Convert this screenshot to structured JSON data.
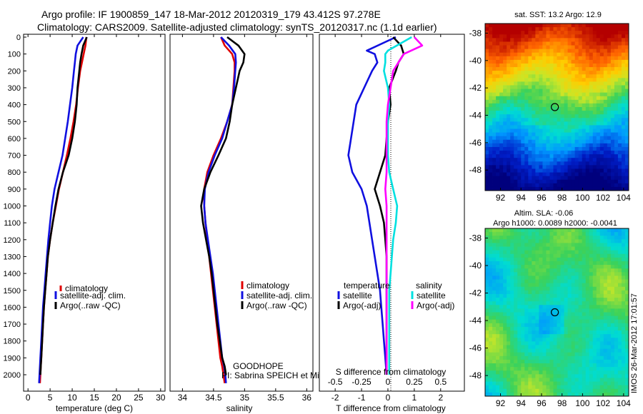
{
  "header": {
    "line1": "Argo profile: IF 1900859_147 18-Mar-2012 20120319_179 43.412S 97.278E",
    "line2": "Climatology: CARS2009. Satellite-adjusted climatology: synTS_20120317.nc (1.1d earlier)"
  },
  "footer": {
    "project": "GOODHOPE",
    "pi": "PI: Sabrina SPEICH et Michel ARHAN",
    "credit": "IMOS 26-Mar-2012 17:01:57"
  },
  "colors": {
    "red": "#e00000",
    "blue": "#1010e0",
    "black": "#000000",
    "cyan": "#00e0e0",
    "magenta": "#ff00ff"
  },
  "chart_data": [
    {
      "id": "temp",
      "type": "line",
      "xlabel": "temperature (deg C)",
      "ylabel": "",
      "xlim": [
        -1,
        31
      ],
      "ylim": [
        2050,
        0
      ],
      "xticks": [
        0,
        5,
        10,
        15,
        20,
        25,
        30
      ],
      "yticks": [
        0,
        100,
        200,
        300,
        400,
        500,
        600,
        700,
        800,
        900,
        1000,
        1100,
        1200,
        1300,
        1400,
        1500,
        1600,
        1700,
        1800,
        1900,
        2000
      ],
      "legend": {
        "placement": "lower-right",
        "entries": [
          "climatology",
          "satellite-adj. clim.",
          "Argo(..raw -QC)"
        ]
      },
      "series": [
        {
          "name": "climatology",
          "color": "red",
          "x": [
            13.2,
            13.0,
            12.6,
            12.2,
            11.8,
            11.3,
            10.9,
            10.3,
            9.6,
            8.8,
            7.9,
            7.0,
            6.3,
            5.6,
            5.0,
            4.5,
            4.2,
            3.9,
            3.6,
            3.4,
            3.2,
            3.0,
            2.9,
            2.8,
            2.7
          ],
          "y": [
            0,
            50,
            100,
            150,
            200,
            300,
            400,
            500,
            600,
            700,
            800,
            900,
            1000,
            1100,
            1200,
            1300,
            1400,
            1500,
            1600,
            1700,
            1800,
            1900,
            1950,
            2000,
            2050
          ]
        },
        {
          "name": "satellite-adj. clim.",
          "color": "blue",
          "x": [
            12.5,
            11.2,
            10.8,
            10.6,
            10.4,
            10.0,
            9.5,
            9.0,
            8.4,
            7.8,
            6.9,
            6.0,
            5.4,
            5.0,
            4.6,
            4.3,
            4.0,
            3.7,
            3.4,
            3.2,
            3.0,
            2.8,
            2.7,
            2.6,
            2.5
          ],
          "y": [
            0,
            50,
            100,
            150,
            200,
            300,
            400,
            500,
            600,
            700,
            800,
            900,
            1000,
            1100,
            1200,
            1300,
            1400,
            1500,
            1600,
            1700,
            1800,
            1900,
            1950,
            2000,
            2050
          ]
        },
        {
          "name": "Argo(..raw -QC)",
          "color": "black",
          "x": [
            13.3,
            12.5,
            12.1,
            11.8,
            11.6,
            11.2,
            11.0,
            10.6,
            10.0,
            9.2,
            7.9,
            6.9,
            6.2,
            5.6,
            5.0,
            4.5,
            4.2,
            3.9,
            3.6,
            3.4,
            3.2,
            3.0,
            2.9,
            2.8
          ],
          "y": [
            0,
            50,
            100,
            150,
            200,
            300,
            400,
            500,
            600,
            700,
            800,
            900,
            1000,
            1100,
            1200,
            1300,
            1400,
            1500,
            1600,
            1700,
            1800,
            1900,
            1950,
            2000
          ]
        }
      ]
    },
    {
      "id": "sal",
      "type": "line",
      "xlabel": "salinity",
      "ylabel": "",
      "xlim": [
        33.8,
        36.1
      ],
      "ylim": [
        2050,
        0
      ],
      "xticks": [
        34,
        34.5,
        35,
        35.5,
        36
      ],
      "yticks": [],
      "legend": {
        "placement": "lower-right",
        "entries": [
          "climatology",
          "satellite-adj. clim.",
          "Argo(..raw -QC)"
        ]
      },
      "series": [
        {
          "name": "climatology",
          "color": "red",
          "x": [
            34.62,
            34.68,
            34.8,
            34.84,
            34.84,
            34.82,
            34.8,
            34.72,
            34.62,
            34.5,
            34.4,
            34.35,
            34.35,
            34.37,
            34.4,
            34.43,
            34.46,
            34.49,
            34.52,
            34.55,
            34.58,
            34.61,
            34.64,
            34.66,
            34.68
          ],
          "y": [
            0,
            50,
            100,
            150,
            200,
            300,
            400,
            500,
            600,
            700,
            800,
            900,
            1000,
            1100,
            1200,
            1300,
            1400,
            1500,
            1600,
            1700,
            1800,
            1900,
            1950,
            2000,
            2050
          ]
        },
        {
          "name": "satellite-adj. clim.",
          "color": "blue",
          "x": [
            34.62,
            34.75,
            34.85,
            34.86,
            34.85,
            34.83,
            34.8,
            34.72,
            34.64,
            34.52,
            34.42,
            34.36,
            34.35,
            34.37,
            34.41,
            34.45,
            34.49,
            34.52,
            34.55,
            34.58,
            34.61,
            34.64,
            34.67,
            34.69,
            34.7
          ],
          "y": [
            0,
            50,
            100,
            150,
            200,
            300,
            400,
            500,
            600,
            700,
            800,
            900,
            1000,
            1100,
            1200,
            1300,
            1400,
            1500,
            1600,
            1700,
            1800,
            1900,
            1950,
            2000,
            2050
          ]
        },
        {
          "name": "Argo(..raw -QC)",
          "color": "black",
          "x": [
            34.72,
            34.9,
            35.0,
            34.98,
            34.92,
            34.86,
            34.8,
            34.76,
            34.7,
            34.58,
            34.45,
            34.35,
            34.3,
            34.33,
            34.38,
            34.43,
            34.47,
            34.5,
            34.53,
            34.56,
            34.6,
            34.64,
            34.68,
            34.7
          ],
          "y": [
            0,
            50,
            100,
            150,
            200,
            300,
            400,
            500,
            600,
            700,
            800,
            900,
            1000,
            1100,
            1200,
            1300,
            1400,
            1500,
            1600,
            1700,
            1800,
            1900,
            1950,
            2000
          ]
        }
      ]
    },
    {
      "id": "diff",
      "type": "line",
      "xlabel": "T difference from climatology",
      "xlabel_top": "S difference from climatology",
      "ylabel": "",
      "xlim": [
        -2.6,
        2.9
      ],
      "ylim": [
        2050,
        0
      ],
      "xticks": [
        -2,
        -1,
        0,
        1,
        2
      ],
      "xticks_sal": [
        "-0.5",
        "-0.25",
        "0",
        "0.25",
        "0.5"
      ],
      "legend": {
        "placement": "lower-center",
        "group_titles": [
          "temperature",
          "salinity"
        ],
        "entries": [
          "satellite",
          "Argo(-adj)",
          "satellite",
          "Argo(-adj)"
        ]
      },
      "series": [
        {
          "name": "satellite",
          "group": "temperature",
          "color": "blue",
          "x": [
            0.3,
            -0.8,
            -0.5,
            -0.4,
            -0.6,
            -0.9,
            -1.2,
            -1.3,
            -1.4,
            -1.5,
            -1.35,
            -1.0,
            -0.8,
            -0.7,
            -0.6,
            -0.5,
            -0.4,
            -0.3,
            -0.25,
            -0.2,
            -0.15,
            -0.1,
            -0.05
          ],
          "y": [
            0,
            80,
            100,
            150,
            200,
            300,
            400,
            500,
            600,
            700,
            800,
            900,
            1000,
            1100,
            1200,
            1300,
            1400,
            1500,
            1600,
            1700,
            1800,
            1900,
            2000
          ]
        },
        {
          "name": "Argo(-adj)",
          "group": "temperature",
          "color": "black",
          "x": [
            0.2,
            0.5,
            0.6,
            0.4,
            0.3,
            0.05,
            0.1,
            0.0,
            -0.05,
            -0.1,
            -0.3,
            -0.5,
            -0.3,
            -0.15,
            -0.1,
            -0.05,
            -0.05,
            -0.05,
            -0.05,
            -0.05,
            -0.05,
            -0.05,
            -0.05
          ],
          "y": [
            0,
            50,
            100,
            150,
            200,
            300,
            400,
            500,
            600,
            700,
            800,
            900,
            1000,
            1100,
            1200,
            1300,
            1400,
            1500,
            1600,
            1700,
            1800,
            1900,
            2000
          ]
        },
        {
          "name": "satellite",
          "group": "salinity",
          "color": "cyan",
          "x": [
            0.9,
            0.0,
            -0.1,
            -0.1,
            -0.15,
            0.0,
            0.05,
            0.0,
            0.0,
            0.0,
            0.05,
            0.2,
            0.35,
            0.3,
            0.2,
            0.15,
            0.1,
            0.05,
            0.05,
            0.05,
            0.05,
            0.05,
            0.05
          ],
          "y": [
            0,
            80,
            100,
            150,
            200,
            300,
            400,
            500,
            600,
            700,
            800,
            900,
            1000,
            1100,
            1200,
            1300,
            1400,
            1500,
            1600,
            1700,
            1800,
            1900,
            2000
          ]
        },
        {
          "name": "Argo(-adj)",
          "group": "salinity",
          "color": "magenta",
          "x": [
            1.0,
            1.3,
            0.6,
            0.4,
            0.2,
            0.1,
            0.0,
            -0.05,
            -0.05,
            -0.05,
            -0.05,
            -0.1,
            -0.05,
            -0.05,
            -0.05,
            -0.05,
            -0.05,
            -0.05,
            -0.05,
            -0.05,
            -0.05,
            -0.05,
            -0.05
          ],
          "y": [
            0,
            50,
            100,
            150,
            200,
            300,
            400,
            500,
            600,
            700,
            800,
            900,
            1000,
            1100,
            1200,
            1300,
            1400,
            1500,
            1600,
            1700,
            1800,
            1900,
            2000
          ]
        }
      ]
    },
    {
      "id": "sst",
      "type": "heatmap",
      "title": "sat. SST: 13.2  Argo: 12.9",
      "xticks": [
        92,
        94,
        96,
        98,
        100,
        102,
        104
      ],
      "yticks": [
        -38,
        -40,
        -42,
        -44,
        -46,
        -48
      ],
      "xlim": [
        90.5,
        104.5
      ],
      "ylim": [
        -49.5,
        -37.3
      ],
      "marker": {
        "lon": 97.3,
        "lat": -43.4
      }
    },
    {
      "id": "sla",
      "type": "heatmap",
      "title": "Altim. SLA: -0.06",
      "subtitle": "Argo h1000: 0.0089 h2000: -0.0041",
      "xticks": [
        92,
        94,
        96,
        98,
        100,
        102,
        104
      ],
      "yticks": [
        -38,
        -40,
        -42,
        -44,
        -46,
        -48
      ],
      "xlim": [
        90.5,
        104.5
      ],
      "ylim": [
        -49.5,
        -37.3
      ],
      "marker": {
        "lon": 97.3,
        "lat": -43.4
      }
    }
  ]
}
